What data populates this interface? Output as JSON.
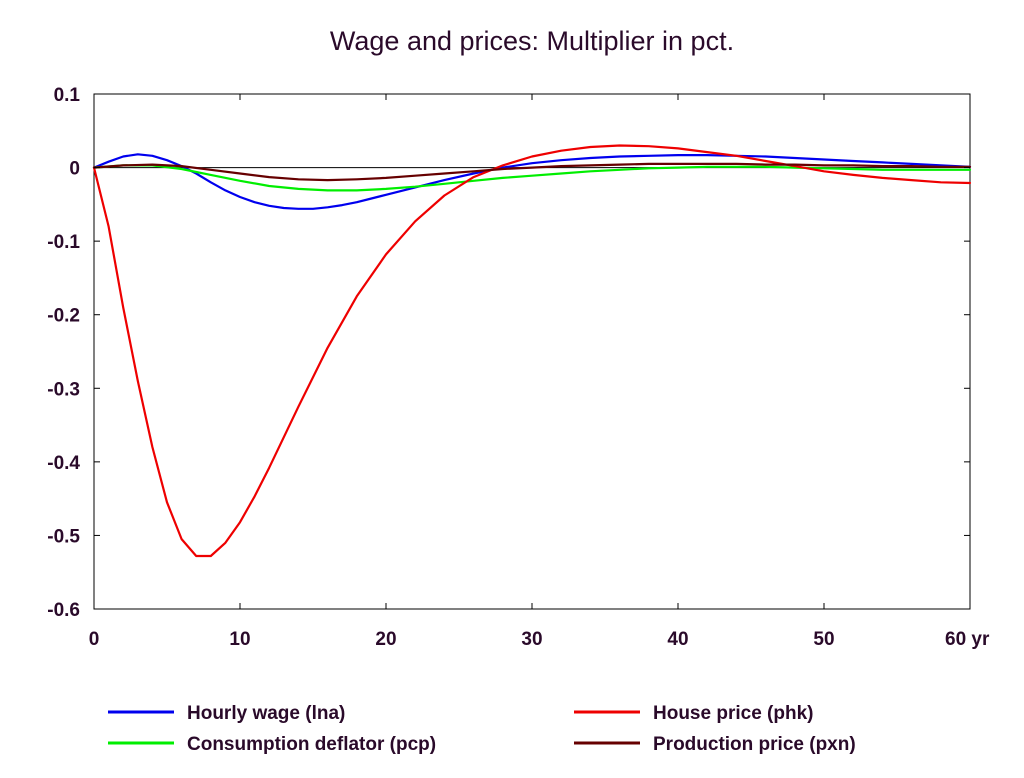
{
  "chart_data": {
    "type": "line",
    "title": "Wage and prices: Multiplier in pct.",
    "xlabel": "",
    "ylabel": "",
    "xlim": [
      0,
      60
    ],
    "ylim": [
      -0.6,
      0.1
    ],
    "x_ticks": [
      0,
      10,
      20,
      30,
      40,
      50,
      60
    ],
    "x_tick_labels": [
      "0",
      "10",
      "20",
      "30",
      "40",
      "50",
      "60 yr"
    ],
    "y_ticks": [
      0.1,
      0,
      -0.1,
      -0.2,
      -0.3,
      -0.4,
      -0.5,
      -0.6
    ],
    "y_tick_labels": [
      "0.1",
      "0",
      "-0.1",
      "-0.2",
      "-0.3",
      "-0.4",
      "-0.5",
      "-0.6"
    ],
    "grid": false,
    "zero_line": true,
    "legend_position": "bottom",
    "series": [
      {
        "name": "Hourly wage (lna)",
        "color": "#0000ee",
        "x": [
          0,
          1,
          2,
          3,
          4,
          5,
          6,
          7,
          8,
          9,
          10,
          11,
          12,
          13,
          14,
          15,
          16,
          17,
          18,
          19,
          20,
          22,
          24,
          26,
          28,
          30,
          32,
          34,
          36,
          38,
          40,
          42,
          44,
          46,
          48,
          50,
          52,
          54,
          56,
          58,
          60
        ],
        "values": [
          0,
          0.008,
          0.015,
          0.018,
          0.016,
          0.01,
          0.002,
          -0.008,
          -0.02,
          -0.031,
          -0.04,
          -0.047,
          -0.052,
          -0.055,
          -0.056,
          -0.056,
          -0.054,
          -0.051,
          -0.047,
          -0.042,
          -0.037,
          -0.027,
          -0.017,
          -0.008,
          0.0,
          0.006,
          0.01,
          0.013,
          0.015,
          0.016,
          0.017,
          0.017,
          0.016,
          0.015,
          0.013,
          0.011,
          0.009,
          0.007,
          0.005,
          0.003,
          0.001
        ]
      },
      {
        "name": "Consumption deflator (pcp)",
        "color": "#00ee00",
        "x": [
          0,
          2,
          4,
          6,
          8,
          10,
          12,
          14,
          16,
          18,
          20,
          22,
          24,
          26,
          28,
          30,
          32,
          34,
          36,
          38,
          40,
          42,
          44,
          46,
          48,
          50,
          52,
          54,
          56,
          58,
          60
        ],
        "values": [
          0,
          0.003,
          0.003,
          -0.002,
          -0.01,
          -0.018,
          -0.025,
          -0.029,
          -0.031,
          -0.031,
          -0.029,
          -0.026,
          -0.022,
          -0.018,
          -0.014,
          -0.011,
          -0.008,
          -0.005,
          -0.003,
          -0.001,
          0.0,
          0.001,
          0.001,
          0.001,
          0.0,
          -0.001,
          -0.002,
          -0.003,
          -0.003,
          -0.003,
          -0.003
        ]
      },
      {
        "name": "House price (phk)",
        "color": "#ee0000",
        "x": [
          0,
          1,
          2,
          3,
          4,
          5,
          6,
          7,
          8,
          9,
          10,
          11,
          12,
          14,
          16,
          18,
          20,
          22,
          24,
          26,
          28,
          30,
          32,
          34,
          36,
          38,
          40,
          42,
          44,
          46,
          48,
          50,
          52,
          54,
          56,
          58,
          60
        ],
        "values": [
          0,
          -0.08,
          -0.19,
          -0.29,
          -0.38,
          -0.455,
          -0.505,
          -0.528,
          -0.528,
          -0.51,
          -0.482,
          -0.447,
          -0.408,
          -0.325,
          -0.245,
          -0.175,
          -0.118,
          -0.073,
          -0.038,
          -0.013,
          0.003,
          0.015,
          0.023,
          0.028,
          0.03,
          0.029,
          0.026,
          0.021,
          0.016,
          0.009,
          0.002,
          -0.005,
          -0.01,
          -0.014,
          -0.017,
          -0.02,
          -0.021
        ]
      },
      {
        "name": "Production price (pxn)",
        "color": "#660000",
        "x": [
          0,
          2,
          4,
          6,
          8,
          10,
          12,
          14,
          16,
          18,
          20,
          22,
          24,
          26,
          28,
          30,
          32,
          34,
          36,
          38,
          40,
          42,
          44,
          46,
          48,
          50,
          52,
          54,
          56,
          58,
          60
        ],
        "values": [
          0,
          0.003,
          0.004,
          0.002,
          -0.003,
          -0.008,
          -0.013,
          -0.016,
          -0.017,
          -0.016,
          -0.014,
          -0.011,
          -0.008,
          -0.005,
          -0.002,
          0.0,
          0.002,
          0.003,
          0.004,
          0.005,
          0.005,
          0.005,
          0.005,
          0.004,
          0.004,
          0.003,
          0.003,
          0.002,
          0.002,
          0.001,
          0.001
        ]
      }
    ]
  }
}
